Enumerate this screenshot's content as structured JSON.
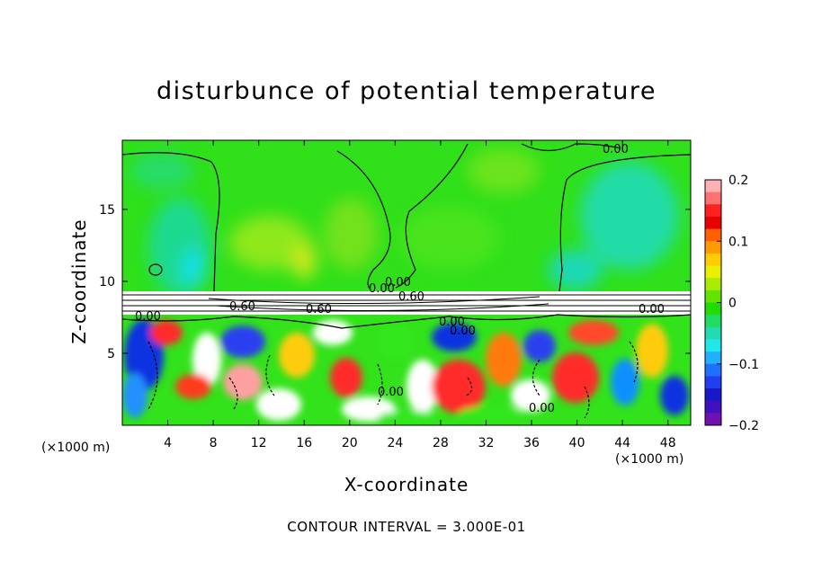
{
  "chart_data": {
    "type": "heatmap",
    "title": "disturbunce of potential temperature",
    "xlabel": "X-coordinate",
    "ylabel": "Z-coordinate",
    "x_unit": "(×1000 m)",
    "x_unit_right": "(×1000 m)",
    "xlim": [
      0,
      50
    ],
    "ylim": [
      0,
      19.8
    ],
    "x_ticks": [
      4,
      8,
      12,
      16,
      20,
      24,
      28,
      32,
      36,
      40,
      44,
      48
    ],
    "y_ticks": [
      5,
      10,
      15
    ],
    "colorbar": {
      "range": [
        -0.2,
        0.2
      ],
      "ticks": [
        0.2,
        0.1,
        0,
        -0.1,
        -0.2
      ],
      "tick_labels": [
        "0.2",
        "0.1",
        "0",
        "−0.1",
        "−0.2"
      ]
    },
    "contour_labels": [
      "0.00",
      "0.00",
      "0.00",
      "0.60",
      "0.60",
      "0.60",
      "0.00",
      "0.00",
      "0.00",
      "0.00",
      "0.00",
      "0.00"
    ],
    "contour_interval": "CONTOUR INTERVAL = 3.000E-01",
    "grid": false,
    "legend": "colorbar-right"
  }
}
